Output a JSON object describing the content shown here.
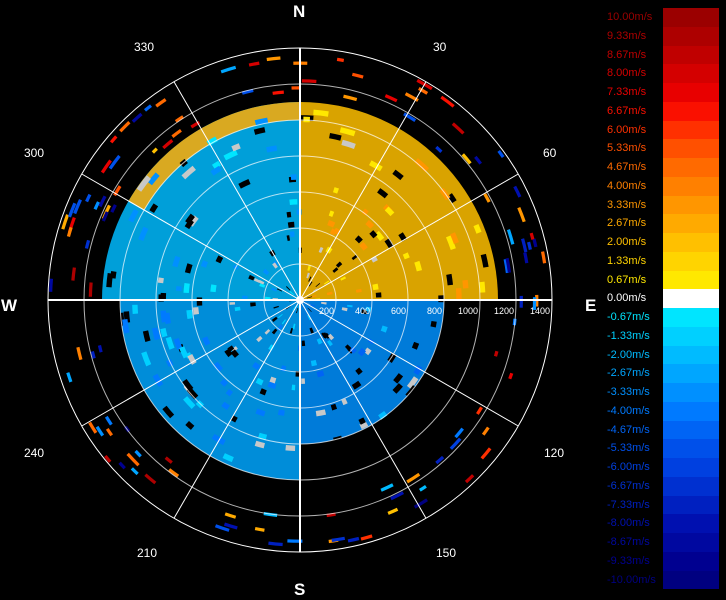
{
  "chart_data": {
    "type": "heatmap",
    "subtype": "polar-ppi",
    "compass": {
      "north": "N",
      "east": "E",
      "south": "S",
      "west": "W"
    },
    "angle_labels": [
      "30",
      "60",
      "120",
      "150",
      "210",
      "240",
      "300",
      "330"
    ],
    "angle_values": [
      30,
      60,
      120,
      150,
      210,
      240,
      300,
      330
    ],
    "range_tick_labels": [
      "200",
      "400",
      "600",
      "800",
      "1000",
      "1200",
      "1400"
    ],
    "range_tick_values": [
      200,
      400,
      600,
      800,
      1000,
      1200,
      1400
    ],
    "range_max": 1400,
    "colorbar": {
      "labels": [
        "10.00m/s",
        "9.33m/s",
        "8.67m/s",
        "8.00m/s",
        "7.33m/s",
        "6.67m/s",
        "6.00m/s",
        "5.33m/s",
        "4.67m/s",
        "4.00m/s",
        "3.33m/s",
        "2.67m/s",
        "2.00m/s",
        "1.33m/s",
        "0.67m/s",
        "0.00m/s",
        "-0.67m/s",
        "-1.33m/s",
        "-2.00m/s",
        "-2.67m/s",
        "-3.33m/s",
        "-4.00m/s",
        "-4.67m/s",
        "-5.33m/s",
        "-6.00m/s",
        "-6.67m/s",
        "-7.33m/s",
        "-8.00m/s",
        "-8.67m/s",
        "-9.33m/s",
        "-10.00m/s"
      ],
      "values": [
        10,
        9.33,
        8.67,
        8,
        7.33,
        6.67,
        6,
        5.33,
        4.67,
        4,
        3.33,
        2.67,
        2,
        1.33,
        0.67,
        0,
        -0.67,
        -1.33,
        -2,
        -2.67,
        -3.33,
        -4,
        -4.67,
        -5.33,
        -6,
        -6.67,
        -7.33,
        -8,
        -8.67,
        -9.33,
        -10
      ],
      "colors": [
        "#9b0000",
        "#ad0000",
        "#c00000",
        "#d40000",
        "#e80000",
        "#fa1000",
        "#ff3000",
        "#ff5000",
        "#ff6a00",
        "#ff8000",
        "#ff9600",
        "#ffaa00",
        "#ffc000",
        "#ffd400",
        "#ffe800",
        "#ffffff",
        "#00e5ff",
        "#00d0ff",
        "#00bbff",
        "#00a6ff",
        "#0090ff",
        "#007aff",
        "#0064f5",
        "#0050ea",
        "#0040e0",
        "#0030d0",
        "#0020c0",
        "#0010b0",
        "#0008a0",
        "#000090",
        "#000080"
      ]
    },
    "sectors": [
      {
        "az_start": 0,
        "az_end": 90,
        "r_start": 0,
        "r_end": 1100,
        "value": 2.2
      },
      {
        "az_start": 90,
        "az_end": 180,
        "r_start": 0,
        "r_end": 800,
        "value": -3.3
      },
      {
        "az_start": 180,
        "az_end": 270,
        "r_start": 0,
        "r_end": 1000,
        "value": -2.6
      },
      {
        "az_start": 270,
        "az_end": 360,
        "r_start": 0,
        "r_end": 1100,
        "value": -2.0
      },
      {
        "az_start": 300,
        "az_end": 360,
        "r_start": 1000,
        "r_end": 1100,
        "value": 2.6
      }
    ]
  }
}
